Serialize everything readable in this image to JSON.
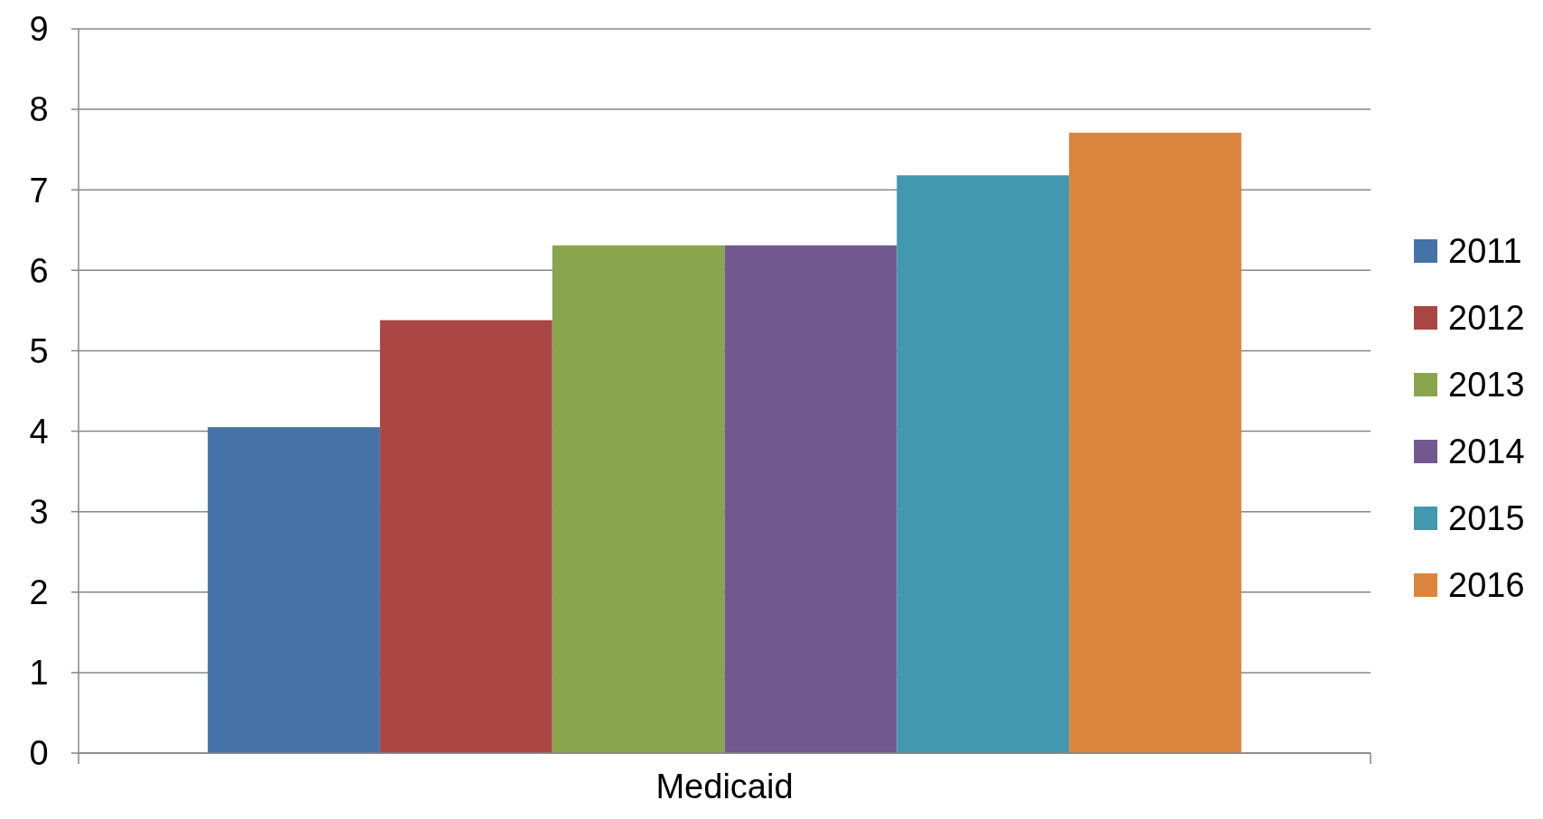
{
  "chart_data": {
    "type": "bar",
    "categories": [
      "Medicaid"
    ],
    "series": [
      {
        "name": "2011",
        "color": "#4572a7",
        "values": [
          4.05
        ]
      },
      {
        "name": "2012",
        "color": "#aa4643",
        "values": [
          5.38
        ]
      },
      {
        "name": "2013",
        "color": "#89a54e",
        "values": [
          6.31
        ]
      },
      {
        "name": "2014",
        "color": "#71588f",
        "values": [
          6.31
        ]
      },
      {
        "name": "2015",
        "color": "#4198af",
        "values": [
          7.18
        ]
      },
      {
        "name": "2016",
        "color": "#db843d",
        "values": [
          7.71
        ]
      }
    ],
    "ylim": [
      0,
      9
    ],
    "yticks": [
      0,
      1,
      2,
      3,
      4,
      5,
      6,
      7,
      8,
      9
    ],
    "grid": "y",
    "legend": "right"
  }
}
